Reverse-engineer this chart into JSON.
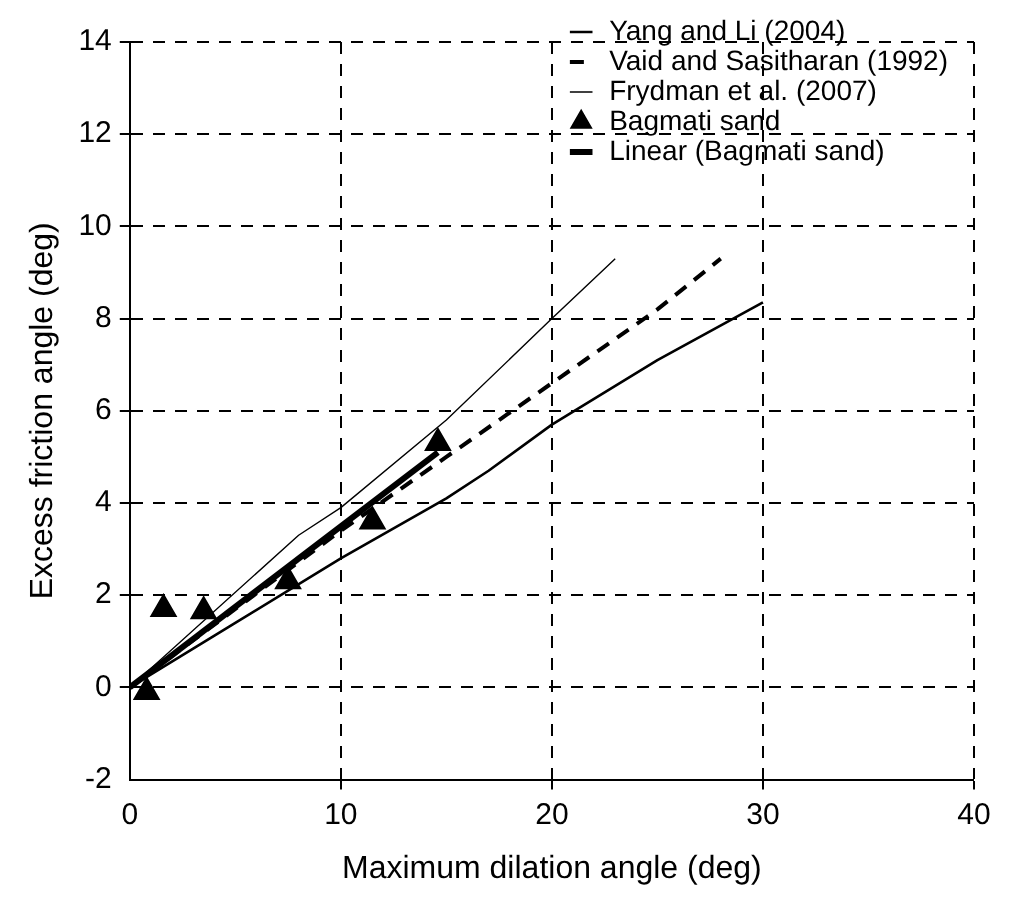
{
  "chart_data": {
    "type": "line",
    "xlabel": "Maximum dilation angle (deg)",
    "ylabel": "Excess friction angle (deg)",
    "xlim": [
      0,
      40
    ],
    "xticks": [
      0,
      10,
      20,
      30,
      40
    ],
    "ylim": [
      -2,
      14
    ],
    "yticks": [
      -2,
      0,
      2,
      4,
      6,
      8,
      10,
      12,
      14
    ],
    "grid": true,
    "legend": "top right",
    "series": [
      {
        "name": "Yang and Li (2004)",
        "color": "#000000",
        "line_style": "solid",
        "x": [
          0,
          5,
          10,
          15,
          17,
          20,
          25,
          30
        ],
        "values": [
          0,
          1.4,
          2.8,
          4.1,
          4.7,
          5.7,
          7.1,
          8.35
        ]
      },
      {
        "name": "Vaid and Sasitharan (1992)",
        "color": "#000000",
        "line_style": "dashed",
        "x": [
          0,
          10,
          15,
          20,
          25,
          28
        ],
        "values": [
          0,
          3.4,
          5.0,
          6.6,
          8.2,
          9.3
        ]
      },
      {
        "name": "Frydman et al. (2007)",
        "color": "#000000",
        "line_style": "solid",
        "x": [
          0,
          8,
          10,
          15,
          20,
          23
        ],
        "values": [
          0,
          3.3,
          3.9,
          5.8,
          8.0,
          9.3
        ]
      },
      {
        "name": "Bagmati sand",
        "type": "scatter",
        "color": "#000000",
        "marker": "triangle",
        "x": [
          0.8,
          1.6,
          3.5,
          7.5,
          11.5,
          14.6
        ],
        "values": [
          -0.1,
          1.7,
          1.65,
          2.3,
          3.6,
          5.3
        ]
      },
      {
        "name": "Linear (Bagmati sand)",
        "color": "#000000",
        "line_style": "solid",
        "x": [
          0,
          14.6
        ],
        "values": [
          0,
          5.1
        ]
      }
    ]
  }
}
